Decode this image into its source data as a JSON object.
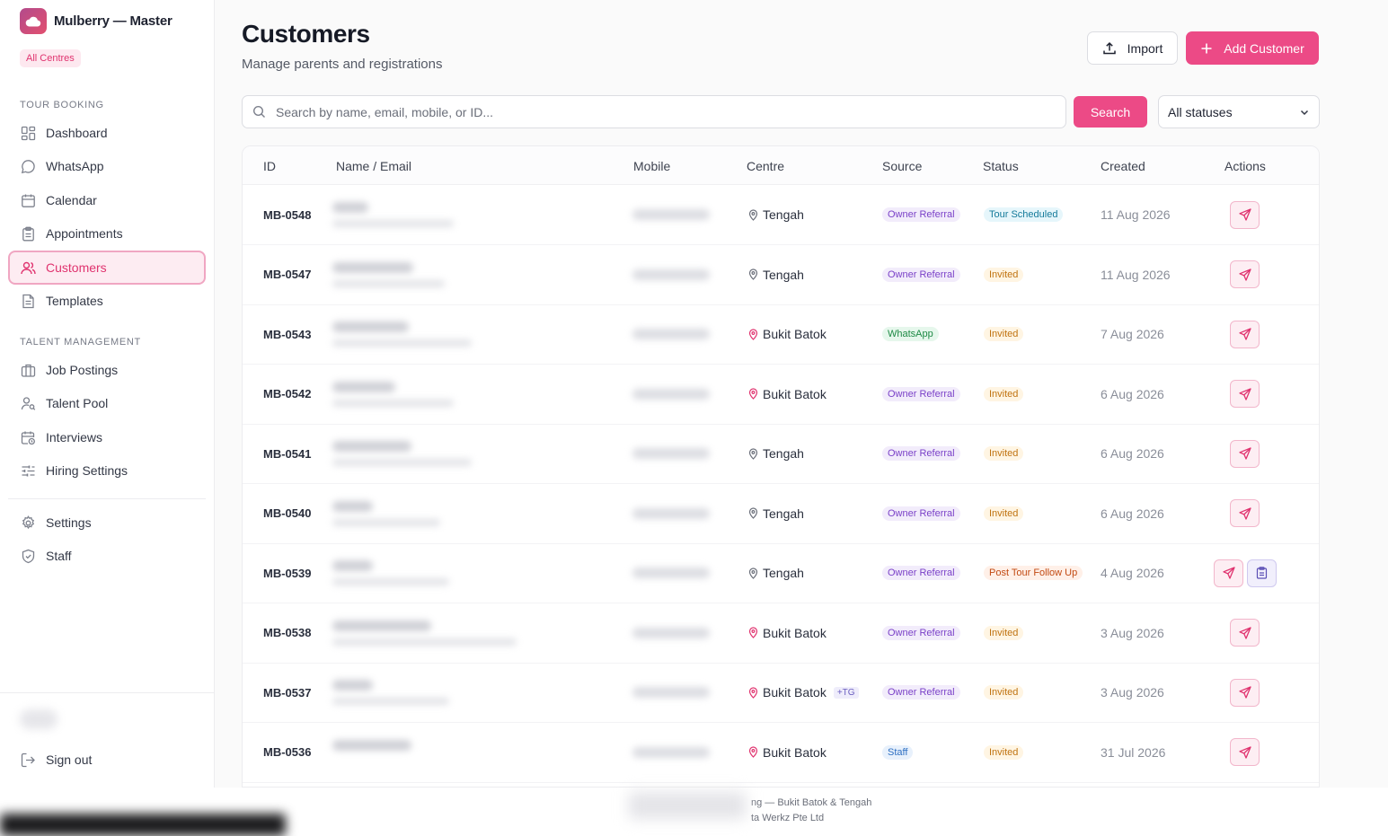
{
  "brand": {
    "title": "Mulberry — Master",
    "centre_badge": "All Centres"
  },
  "nav": {
    "tour_section": "TOUR BOOKING",
    "talent_section": "TALENT MANAGEMENT",
    "items": [
      {
        "label": "Dashboard",
        "icon": "dashboard-icon"
      },
      {
        "label": "WhatsApp",
        "icon": "chat-bubble-icon"
      },
      {
        "label": "Calendar",
        "icon": "calendar-icon"
      },
      {
        "label": "Appointments",
        "icon": "clipboard-icon"
      },
      {
        "label": "Customers",
        "icon": "users-icon",
        "active": true
      },
      {
        "label": "Templates",
        "icon": "document-icon"
      },
      {
        "label": "Job Postings",
        "icon": "briefcase-icon"
      },
      {
        "label": "Talent Pool",
        "icon": "user-search-icon"
      },
      {
        "label": "Interviews",
        "icon": "calendar-clock-icon"
      },
      {
        "label": "Hiring Settings",
        "icon": "sliders-icon"
      },
      {
        "label": "Settings",
        "icon": "gear-icon"
      },
      {
        "label": "Staff",
        "icon": "shield-icon"
      }
    ],
    "sign_out": "Sign out"
  },
  "header": {
    "title": "Customers",
    "subtitle": "Manage parents and registrations",
    "import_label": "Import",
    "add_label": "Add Customer"
  },
  "search": {
    "placeholder": "Search by name, email, mobile, or ID...",
    "button_label": "Search",
    "status_filter": "All statuses"
  },
  "table": {
    "columns": [
      "ID",
      "Name / Email",
      "Mobile",
      "Centre",
      "Source",
      "Status",
      "Created",
      "Actions"
    ],
    "rows": [
      {
        "id": "MB-0548",
        "centre": "Tengah",
        "centre_tag": "",
        "source": "Owner Referral",
        "status": "Tour Scheduled",
        "created": "11 Aug 2026",
        "extra_action": false
      },
      {
        "id": "MB-0547",
        "centre": "Tengah",
        "centre_tag": "",
        "source": "Owner Referral",
        "status": "Invited",
        "created": "11 Aug 2026",
        "extra_action": false
      },
      {
        "id": "MB-0543",
        "centre": "Bukit Batok",
        "centre_tag": "",
        "source": "WhatsApp",
        "status": "Invited",
        "created": "7 Aug 2026",
        "extra_action": false
      },
      {
        "id": "MB-0542",
        "centre": "Bukit Batok",
        "centre_tag": "",
        "source": "Owner Referral",
        "status": "Invited",
        "created": "6 Aug 2026",
        "extra_action": false
      },
      {
        "id": "MB-0541",
        "centre": "Tengah",
        "centre_tag": "",
        "source": "Owner Referral",
        "status": "Invited",
        "created": "6 Aug 2026",
        "extra_action": false
      },
      {
        "id": "MB-0540",
        "centre": "Tengah",
        "centre_tag": "",
        "source": "Owner Referral",
        "status": "Invited",
        "created": "6 Aug 2026",
        "extra_action": false
      },
      {
        "id": "MB-0539",
        "centre": "Tengah",
        "centre_tag": "",
        "source": "Owner Referral",
        "status": "Post Tour Follow Up",
        "created": "4 Aug 2026",
        "extra_action": true
      },
      {
        "id": "MB-0538",
        "centre": "Bukit Batok",
        "centre_tag": "",
        "source": "Owner Referral",
        "status": "Invited",
        "created": "3 Aug 2026",
        "extra_action": false
      },
      {
        "id": "MB-0537",
        "centre": "Bukit Batok",
        "centre_tag": "+TG",
        "source": "Owner Referral",
        "status": "Invited",
        "created": "3 Aug 2026",
        "extra_action": false
      },
      {
        "id": "MB-0536",
        "centre": "Bukit Batok",
        "centre_tag": "",
        "source": "Staff",
        "status": "Invited",
        "created": "31 Jul 2026",
        "extra_action": false
      }
    ]
  },
  "footer": {
    "line1": "ng — Bukit Batok & Tengah",
    "line2": "ta Werkz Pte Ltd"
  },
  "colors": {
    "accent": "#ec4a86",
    "accent_soft": "#fdecf2"
  }
}
